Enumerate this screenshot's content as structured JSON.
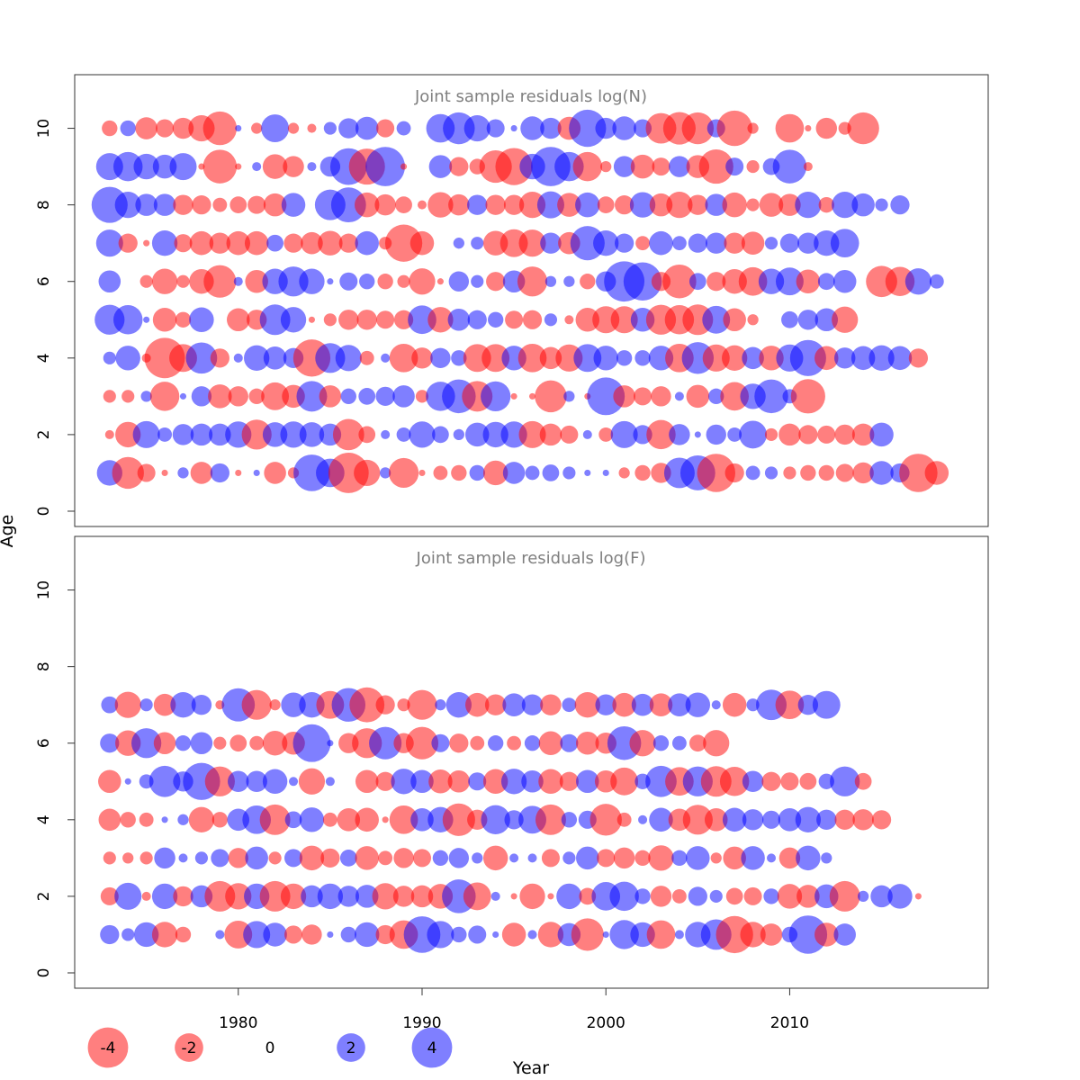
{
  "colors": {
    "positive": "#0000ff",
    "negative": "#ff0000",
    "bubble_alpha": 0.5,
    "title_color": "#7f7f7f"
  },
  "labels": {
    "ylabel": "Age",
    "xlabel": "Year"
  },
  "legend": {
    "items": [
      "-4",
      "-2",
      "0",
      "2",
      "4"
    ],
    "values": [
      -4,
      -2,
      0,
      2,
      4
    ]
  },
  "chart_data": [
    {
      "type": "scatter",
      "title": "Joint sample residuals log(N)",
      "xlim": [
        1971.1,
        2020.8
      ],
      "ylim": [
        -0.4,
        11.4
      ],
      "xticks": [
        1980,
        1990,
        2000,
        2010
      ],
      "yticks": [
        0,
        2,
        4,
        6,
        8,
        10
      ],
      "years": [
        1973,
        2017
      ],
      "residuals": {
        "1": [
          1.6,
          -2.5,
          -0.8,
          -0.1,
          0.3,
          -1.2,
          0.9,
          -0.1,
          0.1,
          -1.2,
          -0.3,
          3.3,
          2.0,
          -4.0,
          -1.7,
          0.3,
          -2.2,
          -0.1,
          -0.5,
          -0.6,
          0.6,
          -1.5,
          1.2,
          0.5,
          0.7,
          0.4,
          0.1,
          0.1,
          -0.3,
          -0.6,
          -1.0,
          2.3,
          3.0,
          -3.6,
          -0.9,
          0.5,
          0.4,
          -0.4,
          -0.6,
          -0.6,
          -0.8,
          -1.1,
          1.4,
          0.9,
          -3.6,
          -1.4
        ],
        "2": [
          -0.2,
          -1.6,
          1.8,
          0.5,
          1.1,
          1.2,
          1.2,
          1.7,
          -2.2,
          1.5,
          1.7,
          1.5,
          1.2,
          -2.4,
          -0.7,
          0.2,
          0.5,
          1.7,
          0.7,
          0.3,
          1.4,
          1.6,
          1.7,
          -1.8,
          -1.2,
          -0.8,
          0.2,
          -0.5,
          1.8,
          0.9,
          -2.1,
          1.1,
          0.1,
          1.0,
          0.5,
          1.9,
          -0.4,
          -1.2,
          -0.9,
          -0.8,
          -1.0,
          -1.2,
          1.4
        ],
        "3": [
          -0.4,
          -0.4,
          0.3,
          -2.1,
          0.1,
          1.0,
          -1.4,
          -1.0,
          -0.6,
          -1.9,
          -1.3,
          2.3,
          -1.2,
          0.6,
          0.7,
          0.9,
          1.2,
          -0.4,
          2.1,
          2.8,
          -2.3,
          2.2,
          -0.1,
          -0.1,
          -2.5,
          0.3,
          -0.1,
          3.5,
          -1.2,
          -0.8,
          -1.0,
          0.2,
          -1.3,
          0.6,
          -2.0,
          1.6,
          2.8,
          0.5,
          -2.9
        ],
        "4": [
          0.4,
          1.5,
          -0.2,
          -4.0,
          -1.9,
          2.4,
          -0.9,
          0.2,
          1.6,
          1.3,
          1.0,
          -3.4,
          2.2,
          1.7,
          -0.5,
          0.2,
          -2.0,
          -1.1,
          1.0,
          0.6,
          -1.9,
          -1.9,
          1.5,
          -2.0,
          -1.2,
          -1.8,
          1.9,
          1.5,
          0.6,
          0.6,
          1.5,
          -2.0,
          2.5,
          -1.8,
          -1.6,
          1.2,
          -1.5,
          1.8,
          3.2,
          -1.4,
          1.1,
          1.4,
          1.6,
          1.4,
          -0.9
        ],
        "5": [
          2.2,
          2.1,
          0.1,
          -1.4,
          -0.6,
          1.5,
          0.0,
          -1.3,
          -1.0,
          2.3,
          1.6,
          -0.1,
          -0.4,
          -1.0,
          -1.0,
          -0.8,
          -0.9,
          2.0,
          -1.6,
          1.2,
          0.9,
          0.6,
          -0.8,
          -0.9,
          0.4,
          -0.2,
          -1.4,
          -1.8,
          -1.8,
          1.4,
          -2.2,
          -2.1,
          -2.3,
          1.9,
          -1.3,
          -0.3,
          0.0,
          0.7,
          1.0,
          1.3,
          -1.7
        ],
        "6": [
          1.2,
          0.0,
          -0.4,
          -1.6,
          -0.4,
          -1.5,
          -2.6,
          0.2,
          -1.3,
          1.6,
          2.2,
          1.6,
          0.1,
          0.8,
          0.6,
          -0.6,
          -0.4,
          -1.7,
          -0.1,
          1.0,
          0.4,
          -0.9,
          1.2,
          -2.2,
          0.3,
          0.3,
          -0.6,
          1.0,
          4.0,
          3.6,
          -0.9,
          -2.8,
          0.7,
          -0.9,
          -1.5,
          -2.0,
          1.6,
          1.9,
          -1.4,
          0.7,
          1.3,
          0.0,
          -2.4,
          -2.1,
          1.7,
          0.5
        ],
        "7": [
          1.8,
          -0.9,
          -0.1,
          1.6,
          -0.8,
          -1.4,
          -1.1,
          -1.4,
          -1.4,
          0.7,
          -0.9,
          -1.2,
          -1.5,
          -0.9,
          1.4,
          -0.4,
          -3.4,
          -1.4,
          0.0,
          0.3,
          0.4,
          -1.5,
          -1.9,
          -1.8,
          1.1,
          -1.2,
          2.9,
          1.6,
          0.9,
          -0.5,
          1.4,
          0.5,
          0.9,
          1.1,
          -1.1,
          -1.3,
          0.4,
          0.9,
          1.1,
          1.6,
          2.0
        ],
        "8": [
          3.2,
          1.7,
          1.2,
          1.2,
          -1.0,
          -0.9,
          -0.5,
          -0.7,
          -0.8,
          -1.3,
          1.4,
          0.0,
          2.3,
          3.0,
          -1.5,
          -1.1,
          -0.7,
          -0.2,
          -1.6,
          -1.1,
          1.0,
          -1.0,
          -1.0,
          -1.7,
          1.8,
          -1.4,
          1.5,
          -0.7,
          -0.9,
          1.6,
          -1.3,
          -1.7,
          -1.0,
          1.2,
          -1.5,
          -0.4,
          -1.4,
          -1.2,
          1.7,
          -0.6,
          1.7,
          1.3,
          0.4,
          0.9
        ],
        "9": [
          1.8,
          2.1,
          1.6,
          1.4,
          1.8,
          -0.1,
          -2.8,
          -0.1,
          0.2,
          -1.5,
          -1.1,
          0.2,
          1.0,
          3.3,
          -3.2,
          3.8,
          -0.1,
          0.0,
          1.3,
          -0.9,
          -0.6,
          -2.6,
          -3.4,
          1.6,
          3.8,
          2.1,
          -2.1,
          -0.3,
          1.1,
          -1.4,
          -0.8,
          1.1,
          -1.3,
          -2.9,
          0.8,
          -0.4,
          0.7,
          2.8,
          -0.2
        ],
        "10": [
          -0.6,
          0.6,
          -1.2,
          -0.8,
          -1.1,
          -1.7,
          -2.8,
          0.1,
          -0.3,
          1.9,
          -0.3,
          -0.2,
          0.4,
          1.0,
          1.3,
          -0.8,
          0.5,
          0.0,
          2.0,
          2.5,
          1.7,
          0.8,
          0.1,
          1.4,
          1.1,
          -1.3,
          3.4,
          1.1,
          1.4,
          0.8,
          -2.3,
          -2.6,
          -2.5,
          0.8,
          -3.1,
          -0.3,
          0.0,
          -2.0,
          -0.1,
          -1.1,
          -0.4,
          -2.5
        ]
      }
    },
    {
      "type": "scatter",
      "title": "Joint sample residuals log(F)",
      "xlim": [
        1971.1,
        2020.8
      ],
      "ylim": [
        -0.4,
        11.4
      ],
      "xticks": [
        1980,
        1990,
        2000,
        2010
      ],
      "yticks": [
        0,
        2,
        4,
        6,
        8,
        10
      ],
      "years": [
        1973,
        2017
      ],
      "residuals": {
        "1": [
          0.9,
          0.4,
          1.5,
          -1.6,
          -0.6,
          0.0,
          0.2,
          -1.9,
          1.8,
          1.4,
          -0.8,
          -1.0,
          0.1,
          0.6,
          1.5,
          -0.9,
          -2.0,
          3.3,
          1.8,
          0.6,
          0.8,
          0.1,
          -1.4,
          0.2,
          -1.6,
          1.3,
          -2.6,
          0.1,
          2.1,
          1.5,
          -2.0,
          0.2,
          1.6,
          2.3,
          -3.4,
          -1.6,
          -1.2,
          0.6,
          3.6,
          -1.4,
          1.2
        ],
        "2": [
          -0.8,
          1.8,
          -0.2,
          1.6,
          -1.0,
          1.2,
          -2.3,
          -1.7,
          1.6,
          -2.3,
          -1.6,
          1.2,
          1.6,
          1.1,
          1.3,
          -1.7,
          -1.1,
          -1.2,
          -1.5,
          2.8,
          -1.9,
          0.2,
          -0.1,
          -1.6,
          -0.1,
          1.6,
          -0.7,
          2.0,
          2.1,
          0.6,
          -1.1,
          -0.5,
          0.9,
          0.4,
          -0.7,
          -0.8,
          0.6,
          -1.5,
          -1.3,
          1.4,
          -2.3,
          0.3,
          1.2,
          1.5,
          -0.1,
          0.0
        ],
        "3": [
          -0.4,
          -0.3,
          -0.4,
          1.1,
          0.2,
          0.4,
          0.8,
          -1.0,
          1.3,
          -0.4,
          0.8,
          -1.5,
          -0.9,
          0.7,
          -1.4,
          -0.5,
          -1.0,
          -0.8,
          0.6,
          1.0,
          0.3,
          -1.5,
          0.2,
          0.2,
          -0.8,
          0.4,
          1.3,
          -0.8,
          -1.1,
          -0.6,
          -1.6,
          0.6,
          1.4,
          -0.3,
          -1.3,
          1.4,
          0.2,
          -1.1,
          1.5,
          0.3
        ],
        "4": [
          -1.2,
          -0.6,
          -0.5,
          0.1,
          0.3,
          -1.6,
          -0.6,
          1.2,
          2.0,
          -2.3,
          0.7,
          1.5,
          -0.5,
          -1.3,
          -1.4,
          -0.1,
          -2.0,
          1.3,
          1.6,
          -2.6,
          -1.0,
          2.1,
          0.9,
          1.9,
          -2.3,
          0.6,
          0.8,
          -2.5,
          -0.5,
          0.2,
          1.4,
          -1.2,
          -2.2,
          -1.3,
          1.4,
          1.1,
          0.8,
          1.3,
          1.6,
          1.0,
          -1.0,
          -1.1,
          -0.9
        ],
        "5": [
          -1.3,
          0.1,
          0.5,
          2.4,
          1.0,
          3.4,
          -2.2,
          1.1,
          1.1,
          1.5,
          0.2,
          -1.7,
          0.2,
          0.0,
          -1.3,
          -0.9,
          1.6,
          1.3,
          -1.4,
          -1.2,
          0.8,
          -1.5,
          1.6,
          1.2,
          -1.5,
          -0.9,
          1.3,
          -1.2,
          -1.9,
          0.6,
          2.4,
          -2.0,
          2.2,
          -2.3,
          -2.1,
          1.1,
          -0.9,
          -0.8,
          -0.7,
          0.6,
          2.2,
          -0.7
        ],
        "6": [
          0.9,
          -1.6,
          2.2,
          -1.2,
          0.6,
          1.2,
          -0.4,
          -0.7,
          -0.5,
          -1.5,
          -1.3,
          3.5,
          0.1,
          -1.0,
          -2.2,
          2.6,
          -1.0,
          -2.6,
          0.8,
          -0.9,
          -0.5,
          0.6,
          -0.5,
          0.6,
          -1.4,
          0.8,
          -1.3,
          -1.1,
          2.8,
          -1.7,
          0.6,
          0.5,
          -0.7,
          -1.7
        ],
        "7": [
          0.7,
          -1.7,
          0.4,
          -1.2,
          1.6,
          1.0,
          -0.2,
          2.7,
          -2.2,
          -0.3,
          1.5,
          1.6,
          -1.9,
          2.8,
          -3.0,
          -0.9,
          -0.4,
          -2.2,
          0.3,
          1.6,
          -1.4,
          -1.1,
          1.3,
          1.1,
          -1.1,
          0.5,
          -1.6,
          1.1,
          -1.4,
          1.2,
          -1.3,
          1.3,
          1.5,
          0.2,
          -1.4,
          0.4,
          2.3,
          -2.0,
          1.0,
          1.9
        ]
      }
    }
  ]
}
